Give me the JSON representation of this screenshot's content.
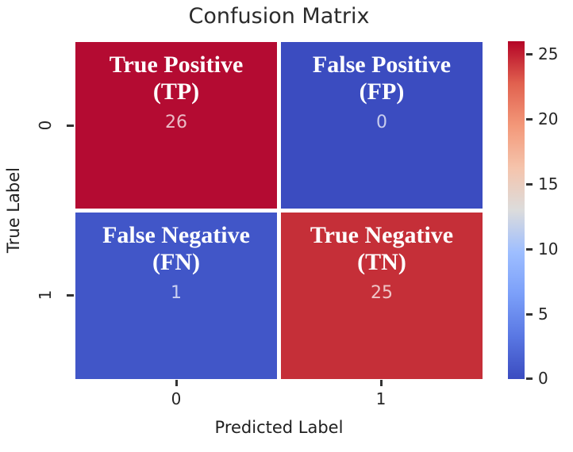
{
  "chart_data": {
    "type": "heatmap",
    "title": "Confusion Matrix",
    "xlabel": "Predicted Label",
    "ylabel": "True Label",
    "x_tick_labels": [
      "0",
      "1"
    ],
    "y_tick_labels": [
      "0",
      "1"
    ],
    "matrix": [
      [
        26,
        0
      ],
      [
        1,
        25
      ]
    ],
    "cells": [
      {
        "row": 0,
        "col": 0,
        "line1": "True Positive",
        "line2": "(TP)",
        "value": 26,
        "color": "#b40b32"
      },
      {
        "row": 0,
        "col": 1,
        "line1": "False Positive",
        "line2": "(FP)",
        "value": 0,
        "color": "#3b4cc0"
      },
      {
        "row": 1,
        "col": 0,
        "line1": "False Negative",
        "line2": "(FN)",
        "value": 1,
        "color": "#4156c8"
      },
      {
        "row": 1,
        "col": 1,
        "line1": "True Negative",
        "line2": "(TN)",
        "value": 25,
        "color": "#c52f38"
      }
    ],
    "colorbar": {
      "min": 0,
      "max": 26,
      "ticks": [
        0,
        5,
        10,
        15,
        20,
        25
      ],
      "colormap": "coolwarm",
      "gradient_bottom_to_top": [
        "#3b4cc0",
        "#5977e3",
        "#7b9ff9",
        "#9ebeff",
        "#dcdcdc",
        "#f5c4ac",
        "#f39879",
        "#e1614f",
        "#b40426"
      ]
    },
    "legend_position": "right-colorbar",
    "grid": false,
    "annotation_text_color": "#ffffff",
    "value_text_color": "rgba(255,255,255,0.72)"
  }
}
